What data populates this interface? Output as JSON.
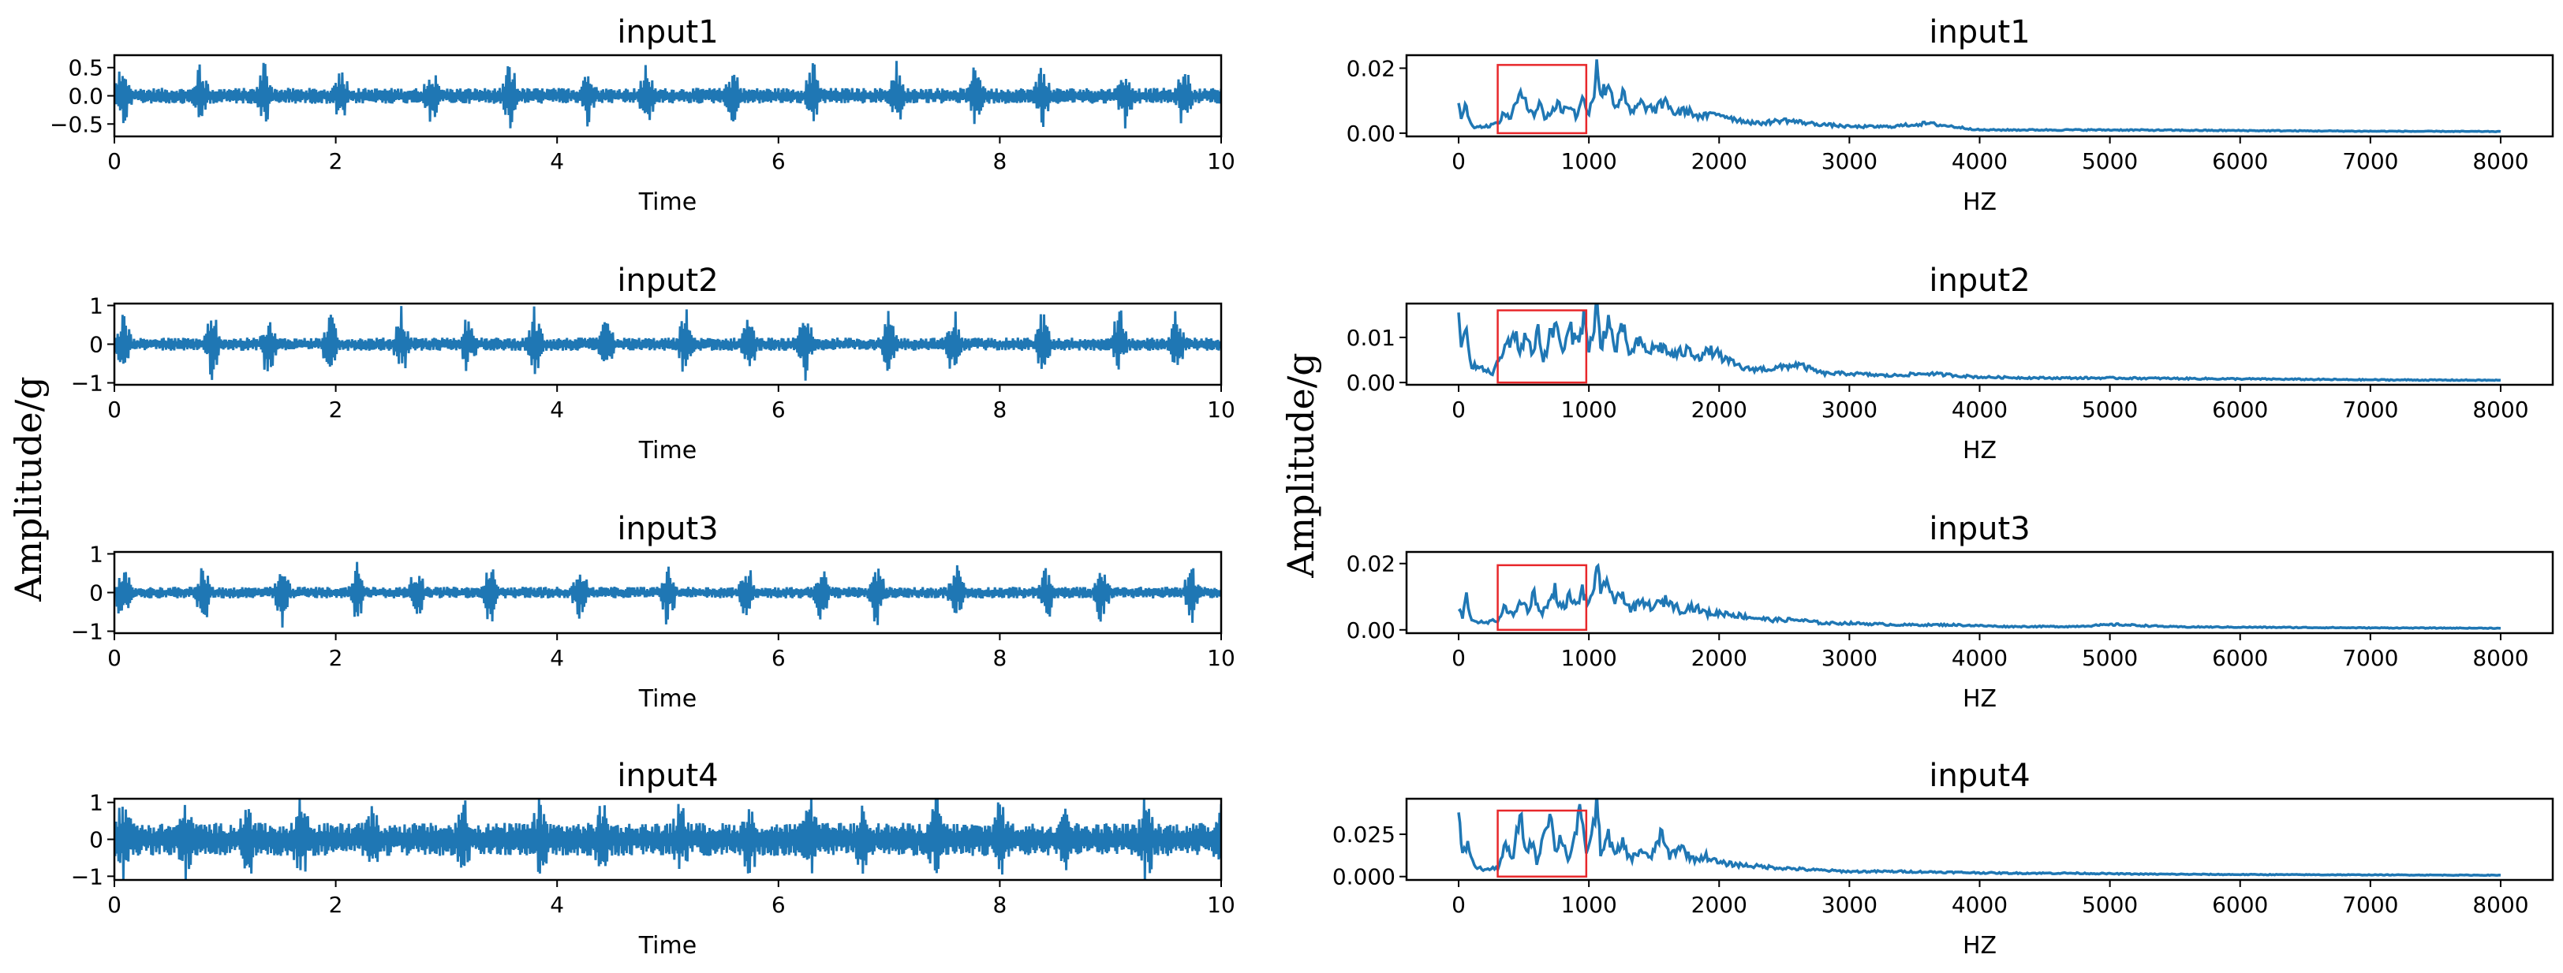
{
  "figure": {
    "left_ylabel": "Amplitude/g",
    "right_ylabel": "Amplitude/g",
    "line_color": "#1f77b4",
    "box_color": "#e8282b"
  },
  "chart_data": [
    {
      "type": "line",
      "panel": "time",
      "title": "input1",
      "xlabel": "Time",
      "xlim": [
        0,
        10
      ],
      "ylim": [
        -0.72,
        0.72
      ],
      "xticks": [
        0,
        2,
        4,
        6,
        8,
        10
      ],
      "xtick_labels": [
        "0",
        "2",
        "4",
        "6",
        "8",
        "10"
      ],
      "yticks": [
        0.5,
        0.0,
        -0.5
      ],
      "ytick_labels": [
        "0.5",
        "0.0",
        "−0.5"
      ],
      "noise_amplitude": 0.14,
      "peak_amplitude": 0.62
    },
    {
      "type": "line",
      "panel": "time",
      "title": "input2",
      "xlabel": "Time",
      "xlim": [
        0,
        10
      ],
      "ylim": [
        -1.05,
        1.05
      ],
      "xticks": [
        0,
        2,
        4,
        6,
        8,
        10
      ],
      "xtick_labels": [
        "0",
        "2",
        "4",
        "6",
        "8",
        "10"
      ],
      "yticks": [
        1,
        0,
        -1
      ],
      "ytick_labels": [
        "1",
        "0",
        "−1"
      ],
      "noise_amplitude": 0.17,
      "peak_amplitude": 0.98
    },
    {
      "type": "line",
      "panel": "time",
      "title": "input3",
      "xlabel": "Time",
      "xlim": [
        0,
        10
      ],
      "ylim": [
        -1.05,
        1.05
      ],
      "xticks": [
        0,
        2,
        4,
        6,
        8,
        10
      ],
      "xtick_labels": [
        "0",
        "2",
        "4",
        "6",
        "8",
        "10"
      ],
      "yticks": [
        1,
        0,
        -1
      ],
      "ytick_labels": [
        "1",
        "0",
        "−1"
      ],
      "noise_amplitude": 0.15,
      "peak_amplitude": 0.95
    },
    {
      "type": "line",
      "panel": "time",
      "title": "input4",
      "xlabel": "Time",
      "xlim": [
        0,
        10
      ],
      "ylim": [
        -1.1,
        1.1
      ],
      "xticks": [
        0,
        2,
        4,
        6,
        8,
        10
      ],
      "xtick_labels": [
        "0",
        "2",
        "4",
        "6",
        "8",
        "10"
      ],
      "yticks": [
        1,
        0,
        -1
      ],
      "ytick_labels": [
        "1",
        "0",
        "−1"
      ],
      "noise_amplitude": 0.45,
      "peak_amplitude": 1.0
    },
    {
      "type": "line",
      "panel": "freq",
      "title": "input1",
      "xlabel": "HZ",
      "xlim": [
        -400,
        8400
      ],
      "ylim": [
        -0.001,
        0.024
      ],
      "xticks": [
        0,
        1000,
        2000,
        3000,
        4000,
        5000,
        6000,
        7000,
        8000
      ],
      "xtick_labels": [
        "0",
        "1000",
        "2000",
        "3000",
        "4000",
        "5000",
        "6000",
        "7000",
        "8000"
      ],
      "yticks": [
        0.02,
        0.0
      ],
      "ytick_labels": [
        "0.02",
        "0.00"
      ],
      "highlight_box": {
        "x": [
          300,
          980
        ],
        "y": [
          0.0,
          0.021
        ]
      },
      "spectrum_points": [
        [
          0,
          0.008
        ],
        [
          20,
          0.005
        ],
        [
          50,
          0.009
        ],
        [
          80,
          0.004
        ],
        [
          120,
          0.002
        ],
        [
          200,
          0.002
        ],
        [
          300,
          0.003
        ],
        [
          350,
          0.006
        ],
        [
          400,
          0.005
        ],
        [
          450,
          0.01
        ],
        [
          500,
          0.012
        ],
        [
          540,
          0.008
        ],
        [
          580,
          0.006
        ],
        [
          620,
          0.009
        ],
        [
          660,
          0.005
        ],
        [
          700,
          0.006
        ],
        [
          760,
          0.009
        ],
        [
          800,
          0.007
        ],
        [
          860,
          0.009
        ],
        [
          900,
          0.005
        ],
        [
          950,
          0.01
        ],
        [
          1000,
          0.007
        ],
        [
          1040,
          0.012
        ],
        [
          1060,
          0.024
        ],
        [
          1090,
          0.011
        ],
        [
          1150,
          0.016
        ],
        [
          1200,
          0.008
        ],
        [
          1260,
          0.012
        ],
        [
          1320,
          0.006
        ],
        [
          1400,
          0.009
        ],
        [
          1500,
          0.007
        ],
        [
          1600,
          0.01
        ],
        [
          1650,
          0.006
        ],
        [
          1750,
          0.007
        ],
        [
          1850,
          0.005
        ],
        [
          2000,
          0.006
        ],
        [
          2150,
          0.004
        ],
        [
          2300,
          0.003
        ],
        [
          2500,
          0.004
        ],
        [
          2700,
          0.003
        ],
        [
          3000,
          0.002
        ],
        [
          3300,
          0.002
        ],
        [
          3600,
          0.003
        ],
        [
          4000,
          0.001
        ],
        [
          4500,
          0.001
        ],
        [
          5000,
          0.001
        ],
        [
          6000,
          0.0008
        ],
        [
          7000,
          0.0006
        ],
        [
          8000,
          0.0005
        ]
      ]
    },
    {
      "type": "line",
      "panel": "freq",
      "title": "input2",
      "xlabel": "HZ",
      "xlim": [
        -400,
        8400
      ],
      "ylim": [
        -0.0005,
        0.0175
      ],
      "xticks": [
        0,
        1000,
        2000,
        3000,
        4000,
        5000,
        6000,
        7000,
        8000
      ],
      "xtick_labels": [
        "0",
        "1000",
        "2000",
        "3000",
        "4000",
        "5000",
        "6000",
        "7000",
        "8000"
      ],
      "yticks": [
        0.01,
        0.0
      ],
      "ytick_labels": [
        "0.01",
        "0.00"
      ],
      "highlight_box": {
        "x": [
          300,
          980
        ],
        "y": [
          0.0,
          0.016
        ]
      },
      "spectrum_points": [
        [
          0,
          0.013
        ],
        [
          30,
          0.008
        ],
        [
          60,
          0.011
        ],
        [
          100,
          0.004
        ],
        [
          180,
          0.003
        ],
        [
          260,
          0.002
        ],
        [
          330,
          0.006
        ],
        [
          380,
          0.009
        ],
        [
          430,
          0.011
        ],
        [
          470,
          0.007
        ],
        [
          520,
          0.011
        ],
        [
          560,
          0.006
        ],
        [
          610,
          0.012
        ],
        [
          650,
          0.005
        ],
        [
          700,
          0.01
        ],
        [
          760,
          0.013
        ],
        [
          800,
          0.006
        ],
        [
          850,
          0.012
        ],
        [
          900,
          0.009
        ],
        [
          960,
          0.014
        ],
        [
          1000,
          0.008
        ],
        [
          1040,
          0.011
        ],
        [
          1060,
          0.0175
        ],
        [
          1090,
          0.008
        ],
        [
          1150,
          0.014
        ],
        [
          1200,
          0.007
        ],
        [
          1260,
          0.012
        ],
        [
          1320,
          0.006
        ],
        [
          1380,
          0.009
        ],
        [
          1450,
          0.007
        ],
        [
          1550,
          0.008
        ],
        [
          1650,
          0.006
        ],
        [
          1750,
          0.007
        ],
        [
          1850,
          0.006
        ],
        [
          1950,
          0.007
        ],
        [
          2050,
          0.005
        ],
        [
          2200,
          0.003
        ],
        [
          2400,
          0.003
        ],
        [
          2600,
          0.004
        ],
        [
          2800,
          0.002
        ],
        [
          3000,
          0.002
        ],
        [
          3300,
          0.0015
        ],
        [
          3600,
          0.002
        ],
        [
          4000,
          0.0012
        ],
        [
          4500,
          0.001
        ],
        [
          5000,
          0.001
        ],
        [
          6000,
          0.0008
        ],
        [
          7000,
          0.0006
        ],
        [
          8000,
          0.0005
        ]
      ]
    },
    {
      "type": "line",
      "panel": "freq",
      "title": "input3",
      "xlabel": "HZ",
      "xlim": [
        -400,
        8400
      ],
      "ylim": [
        -0.001,
        0.0235
      ],
      "xticks": [
        0,
        1000,
        2000,
        3000,
        4000,
        5000,
        6000,
        7000,
        8000
      ],
      "xtick_labels": [
        "0",
        "1000",
        "2000",
        "3000",
        "4000",
        "5000",
        "6000",
        "7000",
        "8000"
      ],
      "yticks": [
        0.02,
        0.0
      ],
      "ytick_labels": [
        "0.02",
        "0.00"
      ],
      "highlight_box": {
        "x": [
          300,
          980
        ],
        "y": [
          0.0,
          0.0195
        ]
      },
      "spectrum_points": [
        [
          0,
          0.006
        ],
        [
          30,
          0.004
        ],
        [
          60,
          0.01
        ],
        [
          100,
          0.003
        ],
        [
          200,
          0.002
        ],
        [
          300,
          0.003
        ],
        [
          360,
          0.007
        ],
        [
          420,
          0.004
        ],
        [
          480,
          0.009
        ],
        [
          530,
          0.006
        ],
        [
          580,
          0.011
        ],
        [
          630,
          0.005
        ],
        [
          680,
          0.007
        ],
        [
          740,
          0.012
        ],
        [
          790,
          0.006
        ],
        [
          850,
          0.01
        ],
        [
          900,
          0.007
        ],
        [
          950,
          0.012
        ],
        [
          1000,
          0.007
        ],
        [
          1040,
          0.013
        ],
        [
          1060,
          0.022
        ],
        [
          1090,
          0.01
        ],
        [
          1150,
          0.015
        ],
        [
          1200,
          0.008
        ],
        [
          1260,
          0.011
        ],
        [
          1320,
          0.006
        ],
        [
          1400,
          0.008
        ],
        [
          1500,
          0.007
        ],
        [
          1600,
          0.009
        ],
        [
          1700,
          0.006
        ],
        [
          1800,
          0.007
        ],
        [
          1900,
          0.005
        ],
        [
          2050,
          0.005
        ],
        [
          2200,
          0.004
        ],
        [
          2400,
          0.003
        ],
        [
          2600,
          0.003
        ],
        [
          2800,
          0.002
        ],
        [
          3000,
          0.002
        ],
        [
          3400,
          0.0015
        ],
        [
          3800,
          0.0015
        ],
        [
          4200,
          0.001
        ],
        [
          4700,
          0.001
        ],
        [
          5050,
          0.0016
        ],
        [
          5500,
          0.0009
        ],
        [
          6000,
          0.0008
        ],
        [
          7000,
          0.0006
        ],
        [
          8000,
          0.0005
        ]
      ]
    },
    {
      "type": "line",
      "panel": "freq",
      "title": "input4",
      "xlabel": "HZ",
      "xlim": [
        -400,
        8400
      ],
      "ylim": [
        -0.002,
        0.046
      ],
      "xticks": [
        0,
        1000,
        2000,
        3000,
        4000,
        5000,
        6000,
        7000,
        8000
      ],
      "xtick_labels": [
        "0",
        "1000",
        "2000",
        "3000",
        "4000",
        "5000",
        "6000",
        "7000",
        "8000"
      ],
      "yticks": [
        0.025,
        0.0
      ],
      "ytick_labels": [
        "0.025",
        "0.000"
      ],
      "highlight_box": {
        "x": [
          300,
          980
        ],
        "y": [
          0.0,
          0.039
        ]
      },
      "spectrum_points": [
        [
          0,
          0.035
        ],
        [
          30,
          0.012
        ],
        [
          70,
          0.02
        ],
        [
          120,
          0.006
        ],
        [
          200,
          0.004
        ],
        [
          300,
          0.005
        ],
        [
          360,
          0.018
        ],
        [
          420,
          0.01
        ],
        [
          470,
          0.038
        ],
        [
          520,
          0.014
        ],
        [
          560,
          0.022
        ],
        [
          600,
          0.008
        ],
        [
          650,
          0.025
        ],
        [
          700,
          0.04
        ],
        [
          740,
          0.015
        ],
        [
          790,
          0.024
        ],
        [
          840,
          0.01
        ],
        [
          880,
          0.02
        ],
        [
          930,
          0.036
        ],
        [
          980,
          0.016
        ],
        [
          1020,
          0.022
        ],
        [
          1060,
          0.045
        ],
        [
          1090,
          0.015
        ],
        [
          1150,
          0.024
        ],
        [
          1200,
          0.012
        ],
        [
          1260,
          0.02
        ],
        [
          1320,
          0.01
        ],
        [
          1400,
          0.016
        ],
        [
          1470,
          0.01
        ],
        [
          1550,
          0.025
        ],
        [
          1620,
          0.012
        ],
        [
          1700,
          0.018
        ],
        [
          1800,
          0.01
        ],
        [
          1900,
          0.012
        ],
        [
          2000,
          0.008
        ],
        [
          2150,
          0.007
        ],
        [
          2300,
          0.006
        ],
        [
          2500,
          0.005
        ],
        [
          2700,
          0.004
        ],
        [
          3000,
          0.003
        ],
        [
          3400,
          0.003
        ],
        [
          3800,
          0.0025
        ],
        [
          4200,
          0.002
        ],
        [
          4700,
          0.002
        ],
        [
          5200,
          0.0015
        ],
        [
          6000,
          0.0012
        ],
        [
          7000,
          0.001
        ],
        [
          8000,
          0.0008
        ]
      ]
    }
  ]
}
